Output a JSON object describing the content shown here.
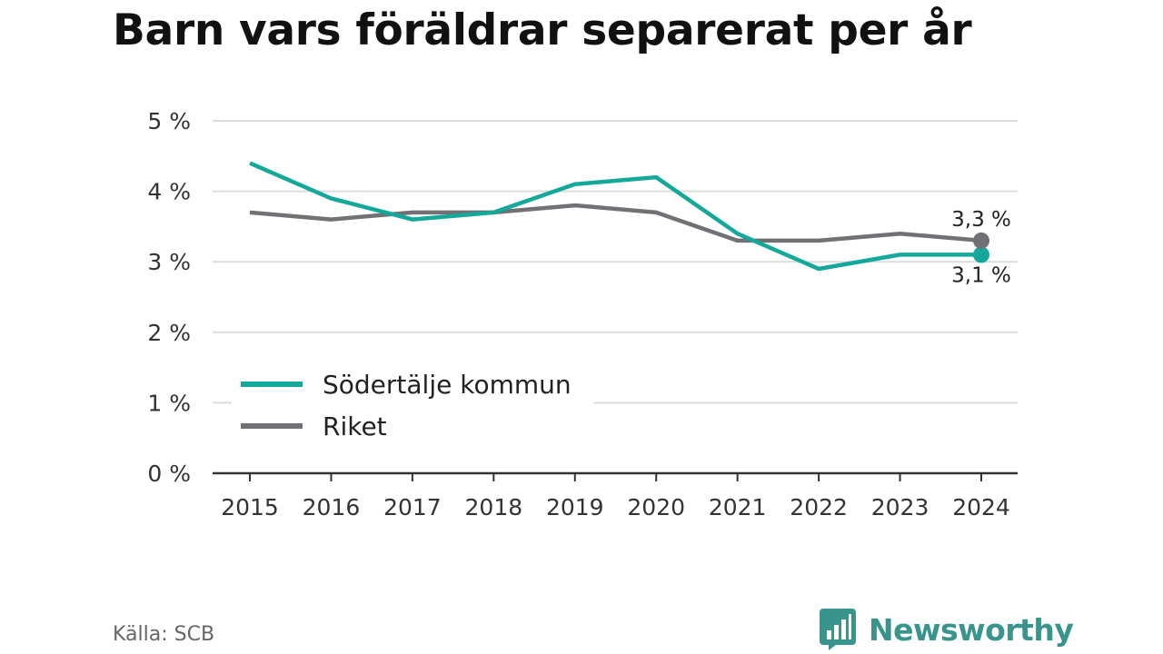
{
  "title": "Barn vars föräldrar separerat per år",
  "source": "Källa: SCB",
  "brand": {
    "name": "Newsworthy",
    "icon": "bar-chart-logo-icon",
    "color": "#38948c"
  },
  "chart_data": {
    "type": "line",
    "title": "Barn vars föräldrar separerat per år",
    "x": [
      "2015",
      "2016",
      "2017",
      "2018",
      "2019",
      "2020",
      "2021",
      "2022",
      "2023",
      "2024"
    ],
    "ylim": [
      0,
      5
    ],
    "y_ticks": [
      0,
      1,
      2,
      3,
      4,
      5
    ],
    "y_tick_labels": [
      "0 %",
      "1 %",
      "2 %",
      "3 %",
      "4 %",
      "5 %"
    ],
    "grid": true,
    "legend_position": "bottom-left",
    "series": [
      {
        "name": "Södertälje kommun",
        "color": "#14a89b",
        "values": [
          4.4,
          3.9,
          3.6,
          3.7,
          4.1,
          4.2,
          3.4,
          2.9,
          3.1,
          3.1
        ],
        "end_label": "3,1 %"
      },
      {
        "name": "Riket",
        "color": "#707075",
        "values": [
          3.7,
          3.6,
          3.7,
          3.7,
          3.8,
          3.7,
          3.3,
          3.3,
          3.4,
          3.3
        ],
        "end_label": "3,3 %"
      }
    ]
  }
}
